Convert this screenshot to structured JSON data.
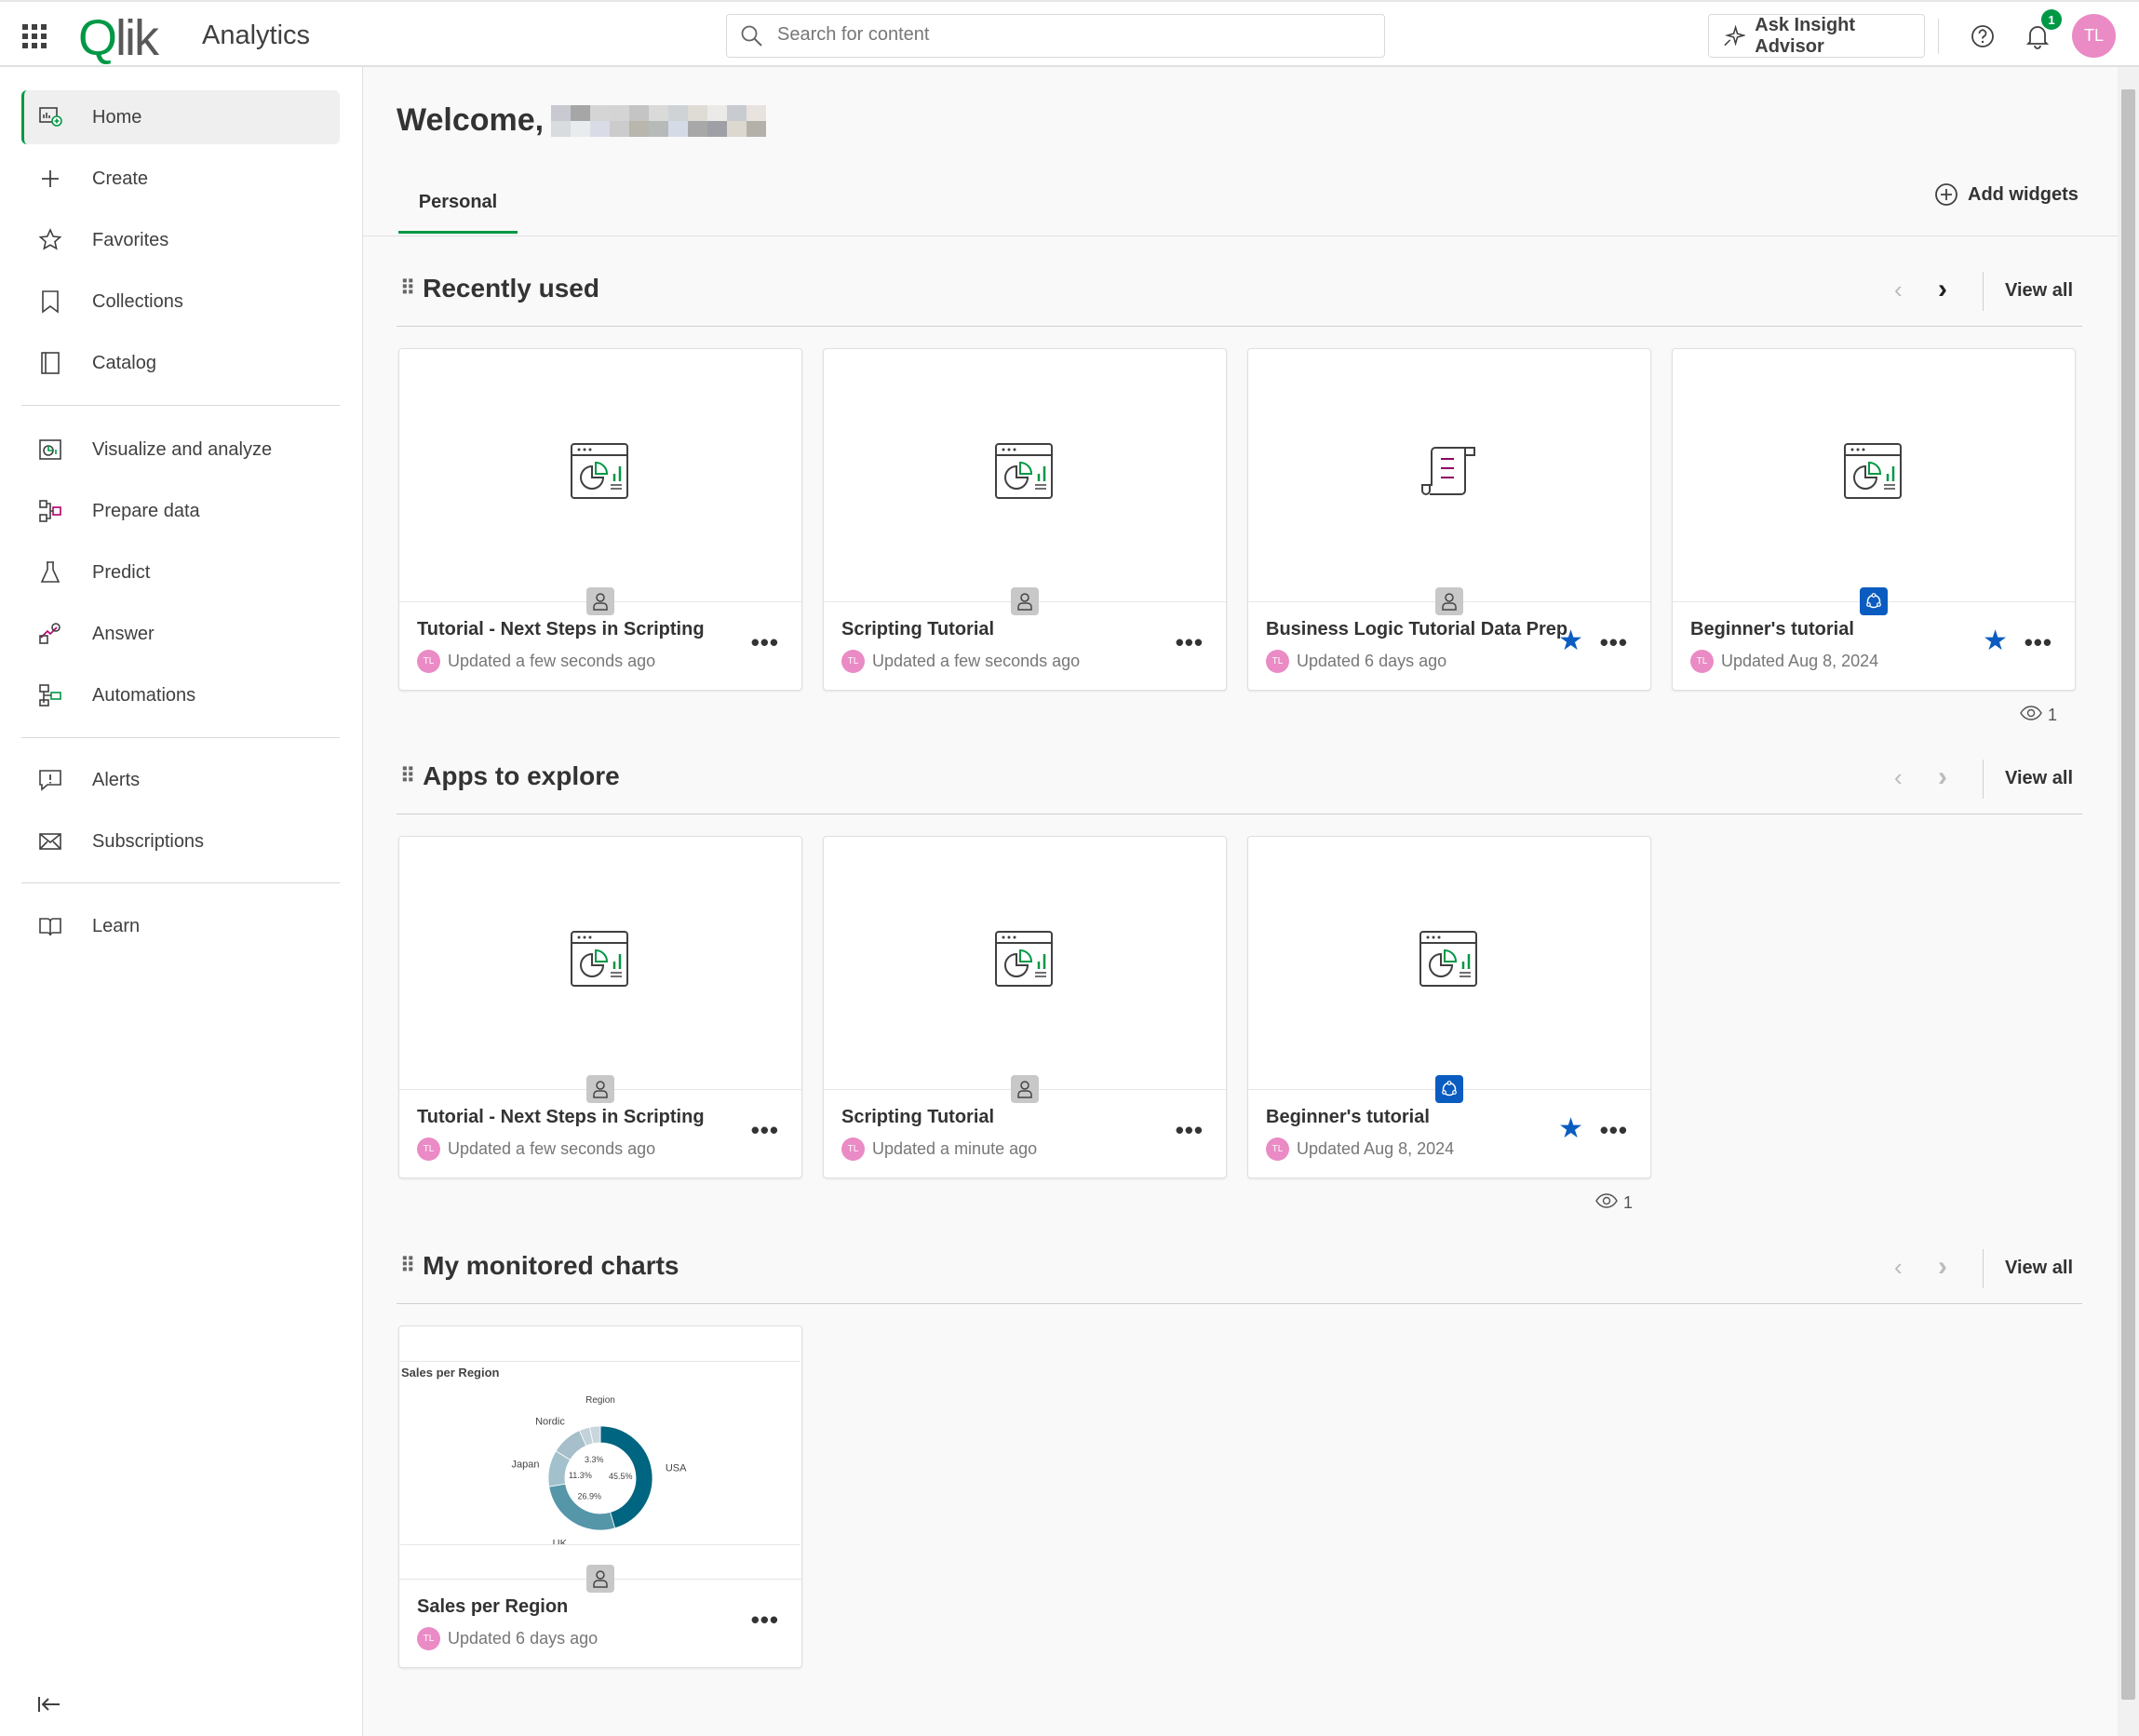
{
  "header": {
    "logo": "Qlik",
    "app_name": "Analytics",
    "search_placeholder": "Search for content",
    "insight_label": "Ask Insight Advisor",
    "notification_count": "1",
    "user_initials": "TL"
  },
  "sidebar": {
    "items": [
      {
        "label": "Home",
        "icon": "home-icon",
        "active": true
      },
      {
        "label": "Create",
        "icon": "plus-icon"
      },
      {
        "label": "Favorites",
        "icon": "star-icon"
      },
      {
        "label": "Collections",
        "icon": "bookmark-icon"
      },
      {
        "label": "Catalog",
        "icon": "catalog-icon"
      },
      {
        "label": "Visualize and analyze",
        "icon": "visualize-icon"
      },
      {
        "label": "Prepare data",
        "icon": "prepare-data-icon"
      },
      {
        "label": "Predict",
        "icon": "flask-icon"
      },
      {
        "label": "Answer",
        "icon": "answer-icon"
      },
      {
        "label": "Automations",
        "icon": "automations-icon"
      },
      {
        "label": "Alerts",
        "icon": "alert-icon"
      },
      {
        "label": "Subscriptions",
        "icon": "envelope-icon"
      },
      {
        "label": "Learn",
        "icon": "book-icon"
      }
    ]
  },
  "main": {
    "welcome": "Welcome,",
    "tabs": [
      {
        "label": "Personal",
        "active": true
      }
    ],
    "add_widgets": "Add widgets",
    "view_all": "View all",
    "sections": [
      {
        "title": "Recently used",
        "views": "1",
        "cards": [
          {
            "title": "Tutorial - Next Steps in Scripting",
            "updated": "Updated a few seconds ago",
            "type": "app",
            "owner": "personal",
            "starred": false
          },
          {
            "title": "Scripting Tutorial",
            "updated": "Updated a few seconds ago",
            "type": "app",
            "owner": "personal",
            "starred": false
          },
          {
            "title": "Business Logic Tutorial Data Prep",
            "updated": "Updated 6 days ago",
            "type": "script",
            "owner": "personal",
            "starred": true
          },
          {
            "title": "Beginner's tutorial",
            "updated": "Updated Aug 8, 2024",
            "type": "app",
            "owner": "shared",
            "starred": true
          }
        ]
      },
      {
        "title": "Apps to explore",
        "views": "1",
        "cards": [
          {
            "title": "Tutorial - Next Steps in Scripting",
            "updated": "Updated a few seconds ago",
            "type": "app",
            "owner": "personal",
            "starred": false
          },
          {
            "title": "Scripting Tutorial",
            "updated": "Updated a minute ago",
            "type": "app",
            "owner": "personal",
            "starred": false
          },
          {
            "title": "Beginner's tutorial",
            "updated": "Updated Aug 8, 2024",
            "type": "app",
            "owner": "shared",
            "starred": true
          }
        ]
      },
      {
        "title": "My monitored charts",
        "cards": [
          {
            "title": "Sales per Region",
            "updated": "Updated 6 days ago",
            "type": "chart",
            "owner": "personal",
            "starred": false
          }
        ]
      }
    ]
  },
  "colors": {
    "accent": "#009845",
    "star": "#0b5cc0",
    "avatar": "#ea8bc5",
    "shared_badge": "#0b5cc0"
  },
  "chart_data": {
    "type": "pie",
    "title": "Sales per Region",
    "legend_title": "Region",
    "donut": true,
    "slices": [
      {
        "name": "USA",
        "value": 45.5,
        "label": "45.5%",
        "color": "#006580"
      },
      {
        "name": "UK",
        "value": 26.9,
        "label": "26.9%",
        "color": "#5596a8"
      },
      {
        "name": "Japan",
        "value": 11.3,
        "label": "11.3%",
        "color": "#a2c1cc"
      },
      {
        "name": "Nordic",
        "value": 9.7,
        "label": "",
        "color": "#a7bfcb"
      },
      {
        "name": "",
        "value": 3.3,
        "label": "3.3%",
        "color": "#c2d2db"
      },
      {
        "name": "",
        "value": 3.3,
        "label": "",
        "color": "#c9d6de"
      }
    ]
  }
}
